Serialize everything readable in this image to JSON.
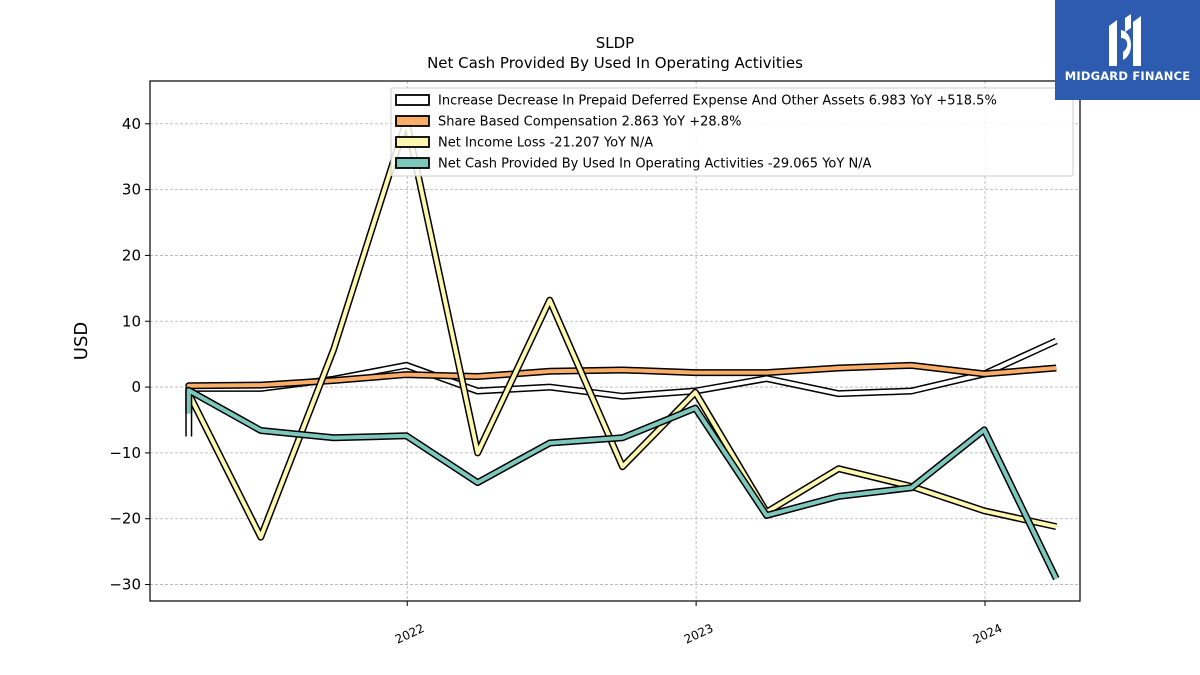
{
  "chart_data": {
    "type": "line",
    "title": "SLDP",
    "subtitle": "Net Cash Provided By Used In Operating Activities",
    "ylabel": "USD",
    "xlabel": "",
    "ylim": [
      -32.5,
      46.5
    ],
    "yticks": [
      40,
      30,
      20,
      10,
      0,
      -10,
      -20,
      -30
    ],
    "ytick_labels": [
      "40",
      "30",
      "20",
      "10",
      "0",
      "−10",
      "−20",
      "−30"
    ],
    "xlim": [
      "2021-02-10",
      "2024-04-30"
    ],
    "xticks": [
      "2022-01-01",
      "2023-01-01",
      "2024-01-01"
    ],
    "xtick_labels": [
      "2022",
      "2023",
      "2024"
    ],
    "grid": true,
    "legend_position": "top-right",
    "x": [
      "2021-03-31",
      "2021-06-30",
      "2021-09-30",
      "2021-12-31",
      "2022-03-31",
      "2022-06-30",
      "2022-09-30",
      "2022-12-31",
      "2023-03-31",
      "2023-06-30",
      "2023-09-30",
      "2023-12-31",
      "2024-03-31"
    ],
    "series": [
      {
        "name": "Increase Decrease In Prepaid Deferred Expense And Other Assets  6.983 YoY +518.5%",
        "color": "#ffffff",
        "values": [
          -0.2,
          -0.2,
          1.2,
          3.3,
          -0.6,
          0.0,
          -1.4,
          -0.6,
          1.3,
          -1.0,
          -0.6,
          2.0,
          7.0
        ]
      },
      {
        "name": "Share Based Compensation  2.863 YoY +28.8%",
        "color": "#f9ad66",
        "values": [
          0.2,
          0.3,
          1.0,
          1.9,
          1.6,
          2.4,
          2.6,
          2.2,
          2.2,
          2.9,
          3.3,
          2.0,
          2.9
        ]
      },
      {
        "name": "Net Income Loss  -21.207 YoY N/A",
        "color": "#fef7af",
        "values": [
          -1.0,
          -22.8,
          5.7,
          40.5,
          -10.0,
          13.2,
          -12.1,
          -0.8,
          -19.0,
          -12.4,
          -15.1,
          -18.8,
          -21.2
        ]
      },
      {
        "name": "Net Cash Provided By Used In Operating Activities  -29.065 YoY N/A",
        "color": "#7dc8bd",
        "values": [
          -0.5,
          -6.6,
          -7.7,
          -7.4,
          -14.5,
          -8.5,
          -7.7,
          -3.2,
          -19.5,
          -16.6,
          -15.3,
          -6.5,
          -29.1
        ]
      }
    ],
    "start_stub": {
      "values": [
        -7.5,
        0.1,
        -1.0,
        -4.0
      ]
    }
  },
  "logo": {
    "text": "MIDGARD FINANCE",
    "color": "#2d5bb0"
  }
}
